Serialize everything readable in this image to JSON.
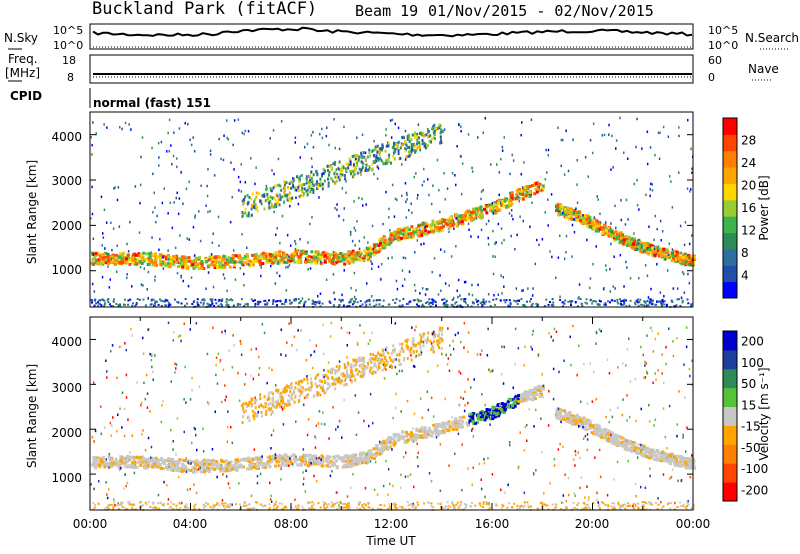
{
  "header": {
    "station": "Buckland Park (fitACF)",
    "beam": "Beam 19",
    "date_range": "01/Nov/2015 - 02/Nov/2015"
  },
  "strips": {
    "nsky_label": "N.Sky",
    "nsky_ticks": [
      "10^5",
      "10^0"
    ],
    "nsearch_label": "N.Search",
    "nsearch_ticks": [
      "10^5",
      "10^0"
    ],
    "freq_label": "Freq.",
    "freq_unit": "[MHz]",
    "freq_ticks": [
      "18",
      "8"
    ],
    "nave_label": "Nave",
    "nave_ticks": [
      "60",
      "0"
    ],
    "cpid_label": "CPID",
    "cpid_value": "normal (fast) 151"
  },
  "chart_data": [
    {
      "type": "heatmap",
      "name": "power",
      "ylabel": "Slant Range [km]",
      "ylim": [
        200,
        4500
      ],
      "xlim_hours": [
        0,
        24
      ],
      "ytick_labels": [
        "1000",
        "2000",
        "3000",
        "4000"
      ],
      "colorbar": {
        "label": "Power [dB]",
        "tick_labels": [
          "4",
          "8",
          "12",
          "16",
          "20",
          "24",
          "28"
        ],
        "colors": [
          "#0000ff",
          "#1f4fa8",
          "#2f6f9f",
          "#2e8b57",
          "#3cb44b",
          "#9acd32",
          "#ffd700",
          "#ffa500",
          "#ff7f00",
          "#ff4500",
          "#ff0000"
        ]
      },
      "features": [
        {
          "band": "low echo band",
          "t": [
            0,
            2,
            4,
            6,
            8,
            10,
            11,
            12,
            14,
            16,
            17,
            18
          ],
          "range_km": [
            1300,
            1300,
            1200,
            1250,
            1350,
            1300,
            1400,
            1800,
            2050,
            2400,
            2700,
            2900
          ]
        },
        {
          "band": "evening descending band",
          "t": [
            18.5,
            19.5,
            20.5,
            21.5,
            22.5,
            23.5,
            24
          ],
          "range_km": [
            2400,
            2200,
            1900,
            1650,
            1450,
            1300,
            1250
          ]
        }
      ]
    },
    {
      "type": "heatmap",
      "name": "velocity",
      "ylabel": "Slant Range [km]",
      "ylim": [
        200,
        4500
      ],
      "xlim_hours": [
        0,
        24
      ],
      "ytick_labels": [
        "1000",
        "2000",
        "3000",
        "4000"
      ],
      "xlabel": "Time UT",
      "xtick_labels": [
        "00:00",
        "04:00",
        "08:00",
        "12:00",
        "16:00",
        "20:00",
        "00:00"
      ],
      "colorbar": {
        "label": "Velocity [m s⁻¹]",
        "tick_labels": [
          "200",
          "100",
          "50",
          "15",
          "-15",
          "-50",
          "-100",
          "-200"
        ],
        "colors": [
          "#0000cd",
          "#1e3fa0",
          "#2e8b57",
          "#55c33a",
          "#c8c8c8",
          "#ffa500",
          "#ff7f00",
          "#ff4500",
          "#ff0000"
        ]
      }
    }
  ]
}
